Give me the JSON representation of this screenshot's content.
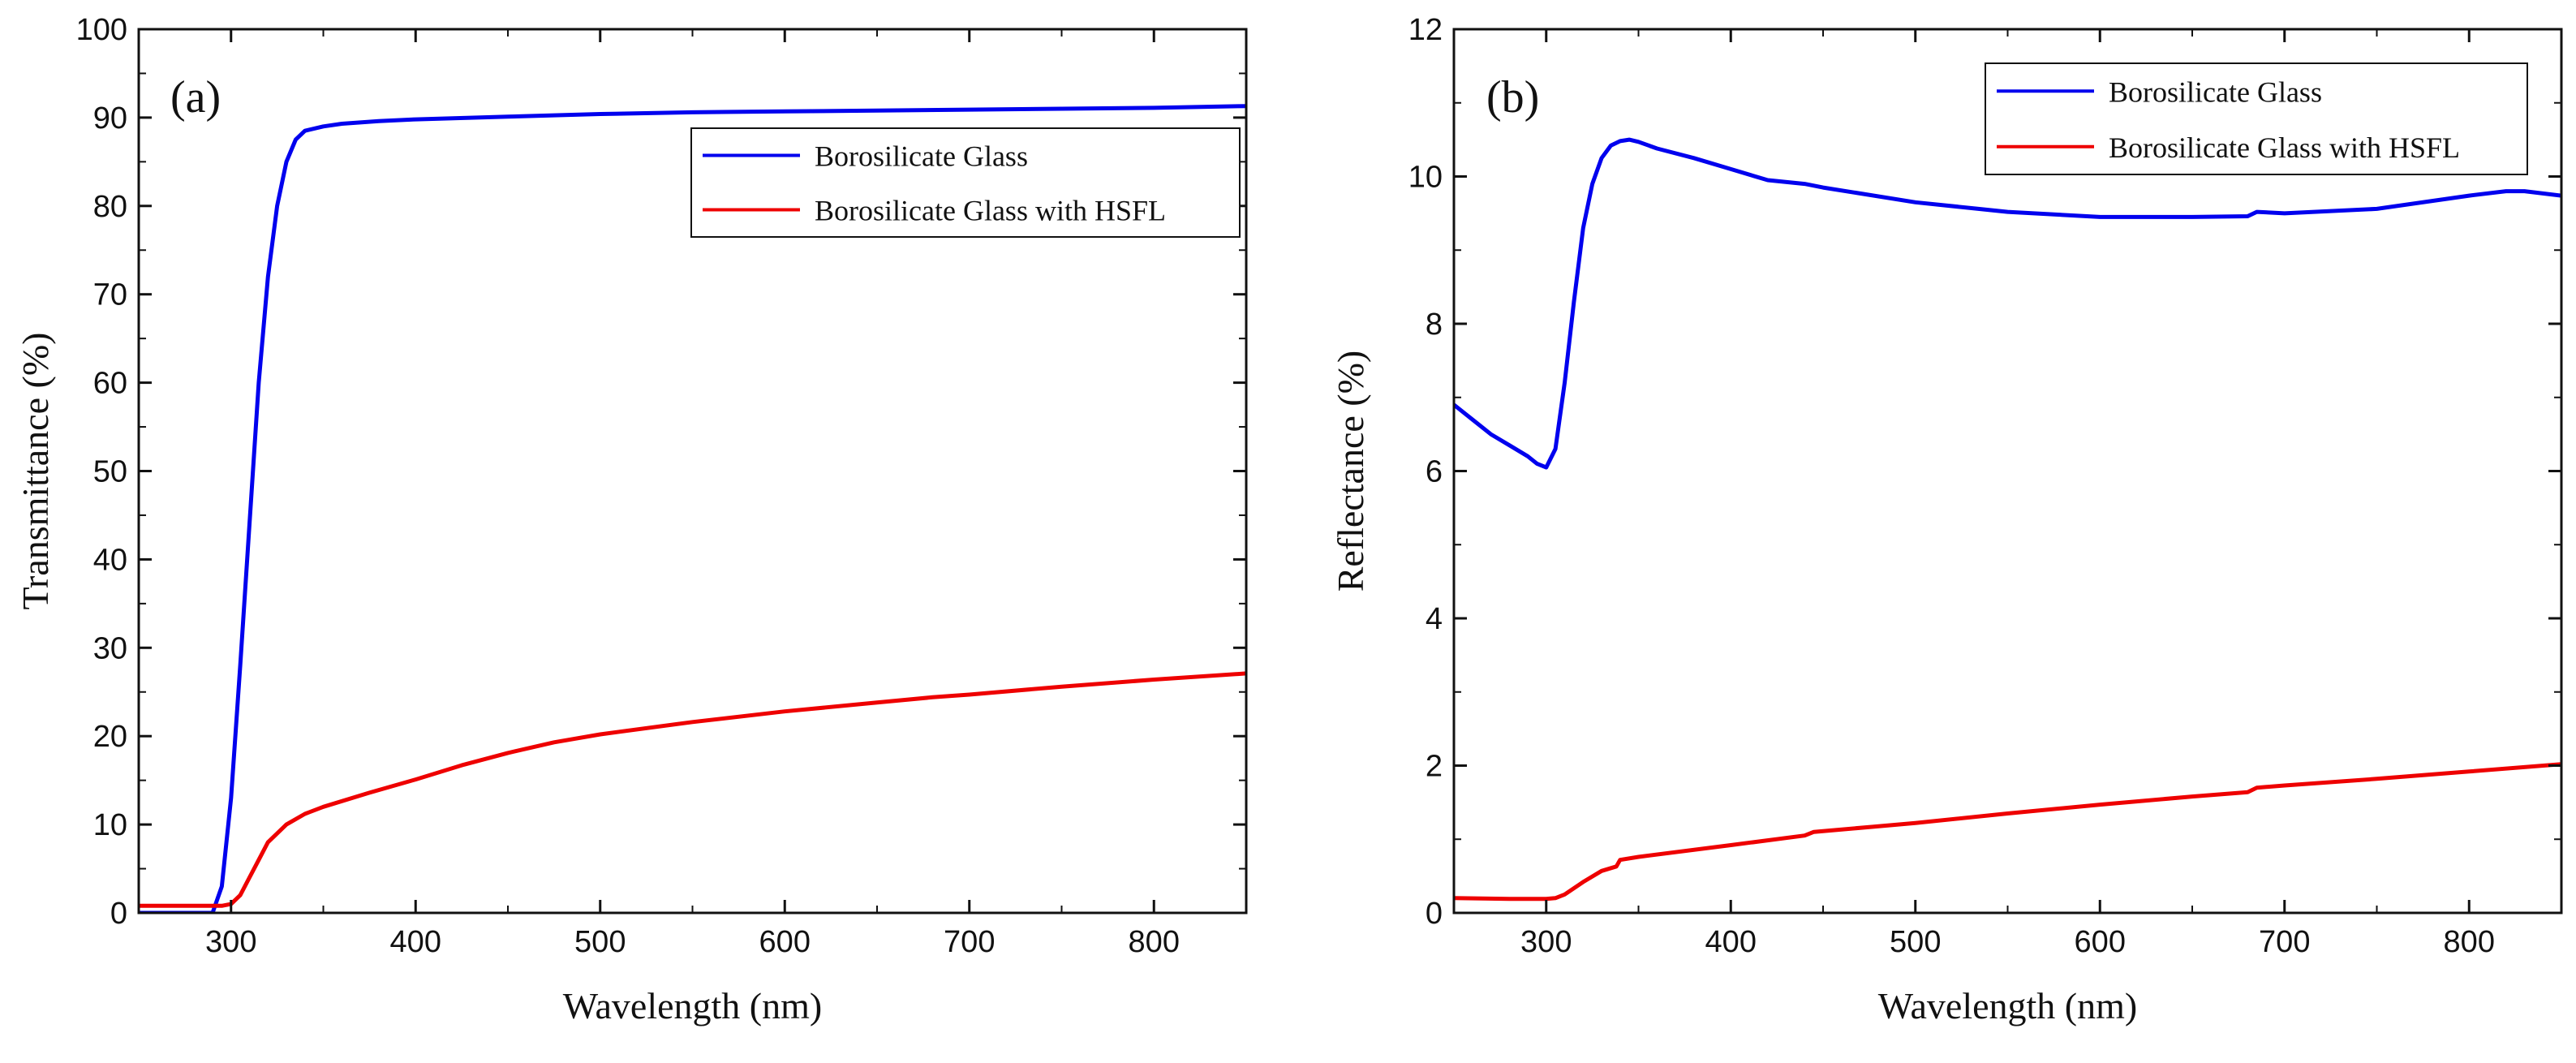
{
  "chart_data": [
    {
      "type": "line",
      "panel_label": "(a)",
      "xlabel": "Wavelength (nm)",
      "ylabel": "Transmittance (%)",
      "xlim": [
        250,
        850
      ],
      "ylim": [
        0,
        100
      ],
      "xticks": [
        300,
        400,
        500,
        600,
        700,
        800
      ],
      "yticks": [
        0,
        10,
        20,
        30,
        40,
        50,
        60,
        70,
        80,
        90,
        100
      ],
      "grid": false,
      "legend_position": "top-right",
      "series": [
        {
          "name": "Borosilicate Glass",
          "color": "#0000ee",
          "x": [
            250,
            290,
            295,
            300,
            305,
            310,
            315,
            320,
            325,
            330,
            335,
            340,
            350,
            360,
            380,
            400,
            450,
            500,
            550,
            600,
            650,
            700,
            750,
            800,
            850
          ],
          "y": [
            0,
            0,
            3,
            13,
            28,
            44,
            60,
            72,
            80,
            85,
            87.5,
            88.5,
            89,
            89.3,
            89.6,
            89.8,
            90.1,
            90.4,
            90.6,
            90.7,
            90.8,
            90.9,
            91.0,
            91.1,
            91.3
          ]
        },
        {
          "name": "Borosilicate Glass with HSFL",
          "color": "#ee0000",
          "x": [
            250,
            290,
            295,
            300,
            305,
            310,
            315,
            320,
            330,
            340,
            350,
            375,
            400,
            425,
            450,
            475,
            500,
            550,
            600,
            650,
            680,
            700,
            750,
            800,
            850
          ],
          "y": [
            0.8,
            0.8,
            0.8,
            1.0,
            2.0,
            4.0,
            6.0,
            8.0,
            10.0,
            11.2,
            12.0,
            13.6,
            15.1,
            16.7,
            18.1,
            19.3,
            20.2,
            21.6,
            22.8,
            23.8,
            24.4,
            24.7,
            25.6,
            26.4,
            27.1
          ]
        }
      ]
    },
    {
      "type": "line",
      "panel_label": "(b)",
      "xlabel": "Wavelength (nm)",
      "ylabel": "Reflectance (%)",
      "xlim": [
        250,
        850
      ],
      "ylim": [
        0,
        12
      ],
      "xticks": [
        300,
        400,
        500,
        600,
        700,
        800
      ],
      "yticks": [
        0,
        2,
        4,
        6,
        8,
        10,
        12
      ],
      "grid": false,
      "legend_position": "top-right",
      "series": [
        {
          "name": "Borosilicate Glass",
          "color": "#0000ee",
          "x": [
            250,
            260,
            270,
            280,
            290,
            295,
            300,
            305,
            310,
            315,
            320,
            325,
            330,
            335,
            340,
            345,
            350,
            360,
            380,
            400,
            420,
            440,
            450,
            500,
            550,
            600,
            650,
            680,
            685,
            700,
            750,
            800,
            820,
            830,
            850
          ],
          "y": [
            6.9,
            6.7,
            6.5,
            6.35,
            6.2,
            6.1,
            6.05,
            6.3,
            7.2,
            8.3,
            9.3,
            9.9,
            10.25,
            10.42,
            10.48,
            10.5,
            10.47,
            10.38,
            10.25,
            10.1,
            9.95,
            9.9,
            9.85,
            9.65,
            9.52,
            9.45,
            9.45,
            9.46,
            9.52,
            9.5,
            9.56,
            9.74,
            9.8,
            9.8,
            9.74
          ]
        },
        {
          "name": "Borosilicate Glass with HSFL",
          "color": "#ee0000",
          "x": [
            250,
            280,
            300,
            305,
            310,
            320,
            330,
            338,
            340,
            350,
            400,
            440,
            445,
            500,
            550,
            600,
            650,
            680,
            685,
            700,
            750,
            800,
            850
          ],
          "y": [
            0.2,
            0.19,
            0.19,
            0.2,
            0.25,
            0.42,
            0.57,
            0.63,
            0.72,
            0.76,
            0.92,
            1.05,
            1.1,
            1.22,
            1.35,
            1.47,
            1.58,
            1.64,
            1.7,
            1.73,
            1.82,
            1.92,
            2.02
          ]
        }
      ]
    }
  ]
}
